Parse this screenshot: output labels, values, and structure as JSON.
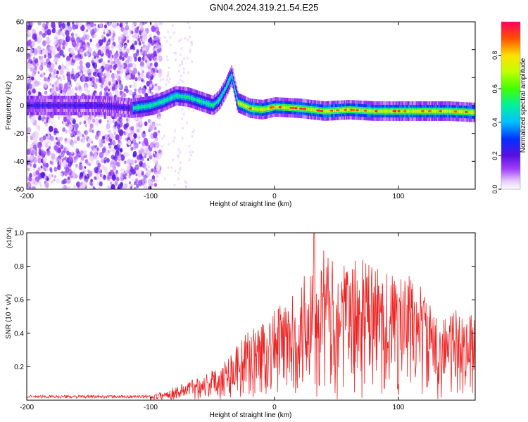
{
  "title": "GN04.2024.319.21.54.E25",
  "chart_data": [
    {
      "type": "heatmap",
      "xlabel": "Height of straight line (km)",
      "ylabel": "Frequency (Hz)",
      "xlim": [
        -200,
        162
      ],
      "ylim": [
        -60,
        60
      ],
      "x_ticks": [
        -200,
        -100,
        0,
        100
      ],
      "y_ticks": [
        -60,
        -40,
        -20,
        0,
        20,
        40,
        60
      ],
      "colorbar": {
        "label": "Normalized spectral amplitude",
        "range": [
          0,
          1
        ],
        "ticks": [
          "0.0",
          "0.2",
          "0.4",
          "0.6",
          "0.8"
        ]
      },
      "trace": [
        {
          "x": -200,
          "y": 0
        },
        {
          "x": -180,
          "y": 0
        },
        {
          "x": -160,
          "y": 0
        },
        {
          "x": -140,
          "y": 0
        },
        {
          "x": -115,
          "y": -2
        },
        {
          "x": -100,
          "y": 0
        },
        {
          "x": -90,
          "y": 3
        },
        {
          "x": -80,
          "y": 7
        },
        {
          "x": -70,
          "y": 6
        },
        {
          "x": -60,
          "y": 3
        },
        {
          "x": -50,
          "y": 0
        },
        {
          "x": -45,
          "y": 4
        },
        {
          "x": -40,
          "y": 12
        },
        {
          "x": -35,
          "y": 22
        },
        {
          "x": -30,
          "y": 2
        },
        {
          "x": -20,
          "y": -2
        },
        {
          "x": -10,
          "y": -3
        },
        {
          "x": 0,
          "y": -1
        },
        {
          "x": 20,
          "y": -2
        },
        {
          "x": 40,
          "y": -4
        },
        {
          "x": 60,
          "y": -3
        },
        {
          "x": 80,
          "y": -4
        },
        {
          "x": 100,
          "y": -4
        },
        {
          "x": 120,
          "y": -4
        },
        {
          "x": 140,
          "y": -4
        },
        {
          "x": 162,
          "y": -5
        }
      ]
    },
    {
      "type": "line",
      "xlabel": "Height of straight line (km)",
      "ylabel": "SNR (10 * v/v)",
      "y_multiplier": "(x10^4)",
      "xlim": [
        -200,
        162
      ],
      "ylim": [
        0,
        1.0
      ],
      "x_ticks": [
        -200,
        -100,
        0,
        100
      ],
      "y_ticks": [
        "0.2",
        "0.4",
        "0.6",
        "0.8",
        "1.0"
      ],
      "series": [
        {
          "color": "#ee2222",
          "envelope": [
            {
              "x": -200,
              "y": 0.03
            },
            {
              "x": -100,
              "y": 0.03
            },
            {
              "x": -90,
              "y": 0.05
            },
            {
              "x": -75,
              "y": 0.1
            },
            {
              "x": -60,
              "y": 0.15
            },
            {
              "x": -45,
              "y": 0.2
            },
            {
              "x": -30,
              "y": 0.35
            },
            {
              "x": -15,
              "y": 0.45
            },
            {
              "x": 0,
              "y": 0.55
            },
            {
              "x": 20,
              "y": 0.65
            },
            {
              "x": 32,
              "y": 1.0
            },
            {
              "x": 50,
              "y": 0.8
            },
            {
              "x": 70,
              "y": 0.85
            },
            {
              "x": 100,
              "y": 0.75
            },
            {
              "x": 115,
              "y": 0.75
            },
            {
              "x": 130,
              "y": 0.5
            },
            {
              "x": 150,
              "y": 0.55
            },
            {
              "x": 162,
              "y": 0.5
            }
          ]
        }
      ]
    }
  ]
}
